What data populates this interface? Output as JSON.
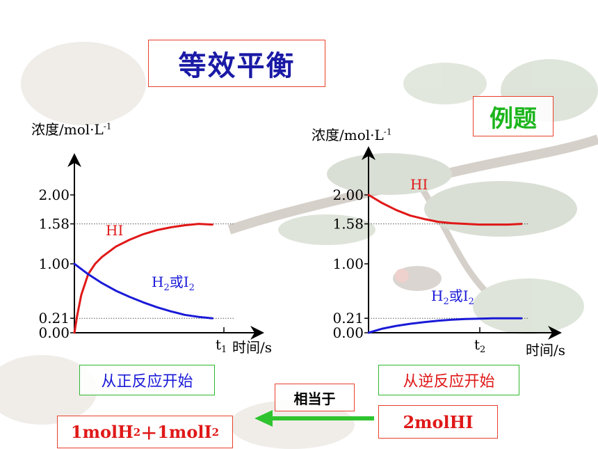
{
  "title": "等效平衡",
  "example_label": "例题",
  "left_start_label": "从正反应开始",
  "right_start_label": "从逆反应开始",
  "equivalent_label": "相当于",
  "hi_amount_label": "2molHI",
  "reactant_amount": {
    "a": "1molH",
    "a_sub": "2",
    "plus": "＋",
    "b": "1molI",
    "b_sub": "2"
  },
  "colors": {
    "hi": "#e01818",
    "h2i2": "#1a1ad8",
    "arrow": "#2fc42f",
    "box_border": "#e8402a"
  },
  "chart_data": [
    {
      "type": "line",
      "ylabel": "浓度/mol·L",
      "ylabel_sup": "-1",
      "xlabel": "时间/s",
      "x_tick_label": "t",
      "x_tick_sub": "1",
      "y_ticks": [
        "2.00",
        "1.58",
        "1.00",
        "0.21",
        "0.00"
      ],
      "y_tick_values": [
        2.0,
        1.58,
        1.0,
        0.21,
        0.0
      ],
      "ylim": [
        0,
        2.5
      ],
      "xlim": [
        0,
        1.25
      ],
      "series": [
        {
          "name": "HI",
          "color": "#e01818",
          "x": [
            0,
            0.02,
            0.05,
            0.1,
            0.15,
            0.2,
            0.3,
            0.4,
            0.5,
            0.6,
            0.7,
            0.8,
            0.9,
            1.0
          ],
          "y": [
            0.0,
            0.25,
            0.55,
            0.85,
            1.0,
            1.1,
            1.25,
            1.35,
            1.43,
            1.49,
            1.53,
            1.56,
            1.58,
            1.57
          ]
        },
        {
          "name": "H2或I2",
          "name_main": "H",
          "name_sub1": "2",
          "name_mid": "或I",
          "name_sub2": "2",
          "color": "#1a1ad8",
          "x": [
            0,
            0.1,
            0.2,
            0.3,
            0.4,
            0.5,
            0.6,
            0.7,
            0.8,
            0.9,
            1.0
          ],
          "y": [
            1.0,
            0.85,
            0.72,
            0.61,
            0.52,
            0.44,
            0.37,
            0.31,
            0.26,
            0.23,
            0.21
          ]
        }
      ],
      "reference_lines": [
        1.58,
        0.21
      ]
    },
    {
      "type": "line",
      "ylabel": "浓度/mol·L",
      "ylabel_sup": "-1",
      "xlabel": "时间/s",
      "x_tick_label": "t",
      "x_tick_sub": "2",
      "y_ticks": [
        "2.00",
        "1.58",
        "1.00",
        "0.21",
        "0.00"
      ],
      "y_tick_values": [
        2.0,
        1.58,
        1.0,
        0.21,
        0.0
      ],
      "ylim": [
        0,
        2.5
      ],
      "xlim": [
        0,
        1.25
      ],
      "series": [
        {
          "name": "HI",
          "color": "#e01818",
          "x": [
            0,
            0.1,
            0.2,
            0.3,
            0.4,
            0.5,
            0.6,
            0.7,
            0.8,
            0.9,
            1.0,
            1.1
          ],
          "y": [
            2.0,
            1.88,
            1.78,
            1.7,
            1.65,
            1.61,
            1.59,
            1.58,
            1.57,
            1.57,
            1.57,
            1.58
          ]
        },
        {
          "name": "H2或I2",
          "name_main": "H",
          "name_sub1": "2",
          "name_mid": "或I",
          "name_sub2": "2",
          "color": "#1a1ad8",
          "x": [
            0,
            0.1,
            0.2,
            0.3,
            0.4,
            0.5,
            0.6,
            0.7,
            0.8,
            0.9,
            1.0,
            1.1
          ],
          "y": [
            0.0,
            0.06,
            0.1,
            0.13,
            0.155,
            0.175,
            0.19,
            0.2,
            0.205,
            0.21,
            0.21,
            0.21
          ]
        }
      ],
      "reference_lines": [
        1.58,
        0.21
      ]
    }
  ]
}
